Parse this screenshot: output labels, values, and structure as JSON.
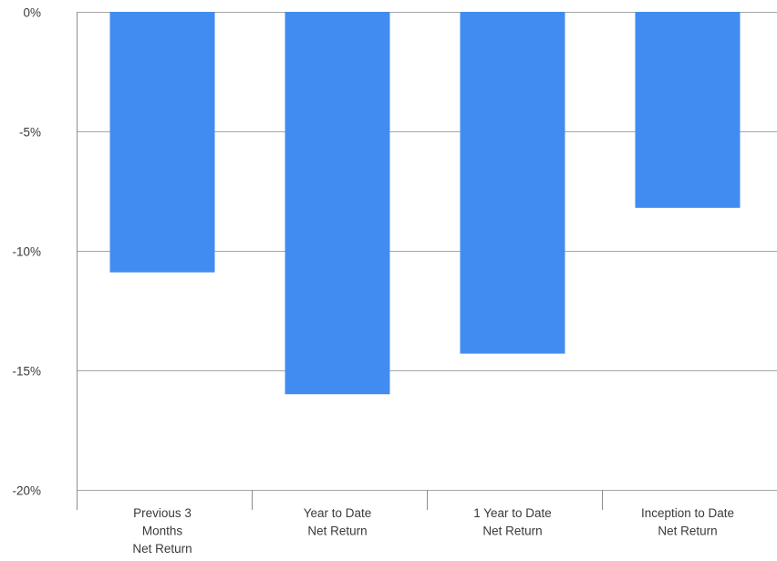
{
  "chart_data": {
    "type": "bar",
    "categories": [
      [
        "Previous 3",
        "Months",
        "Net Return"
      ],
      [
        "Year to Date",
        "Net Return"
      ],
      [
        "1 Year to Date",
        "Net Return"
      ],
      [
        "Inception to Date",
        "Net Return"
      ]
    ],
    "values": [
      -10.9,
      -16.0,
      -14.3,
      -8.2
    ],
    "title": "",
    "xlabel": "",
    "ylabel": "",
    "ylim": [
      -20,
      0
    ],
    "yticks": [
      0,
      -5,
      -10,
      -15,
      -20
    ],
    "ytick_labels": [
      "0%",
      "-5%",
      "-10%",
      "-15%",
      "-20%"
    ],
    "grid": true,
    "legend": "none",
    "colors": {
      "bar": "#418cf0",
      "gridline": "#a6a6a6",
      "axis": "#8c8c8c",
      "text": "#3a3a3a"
    }
  }
}
